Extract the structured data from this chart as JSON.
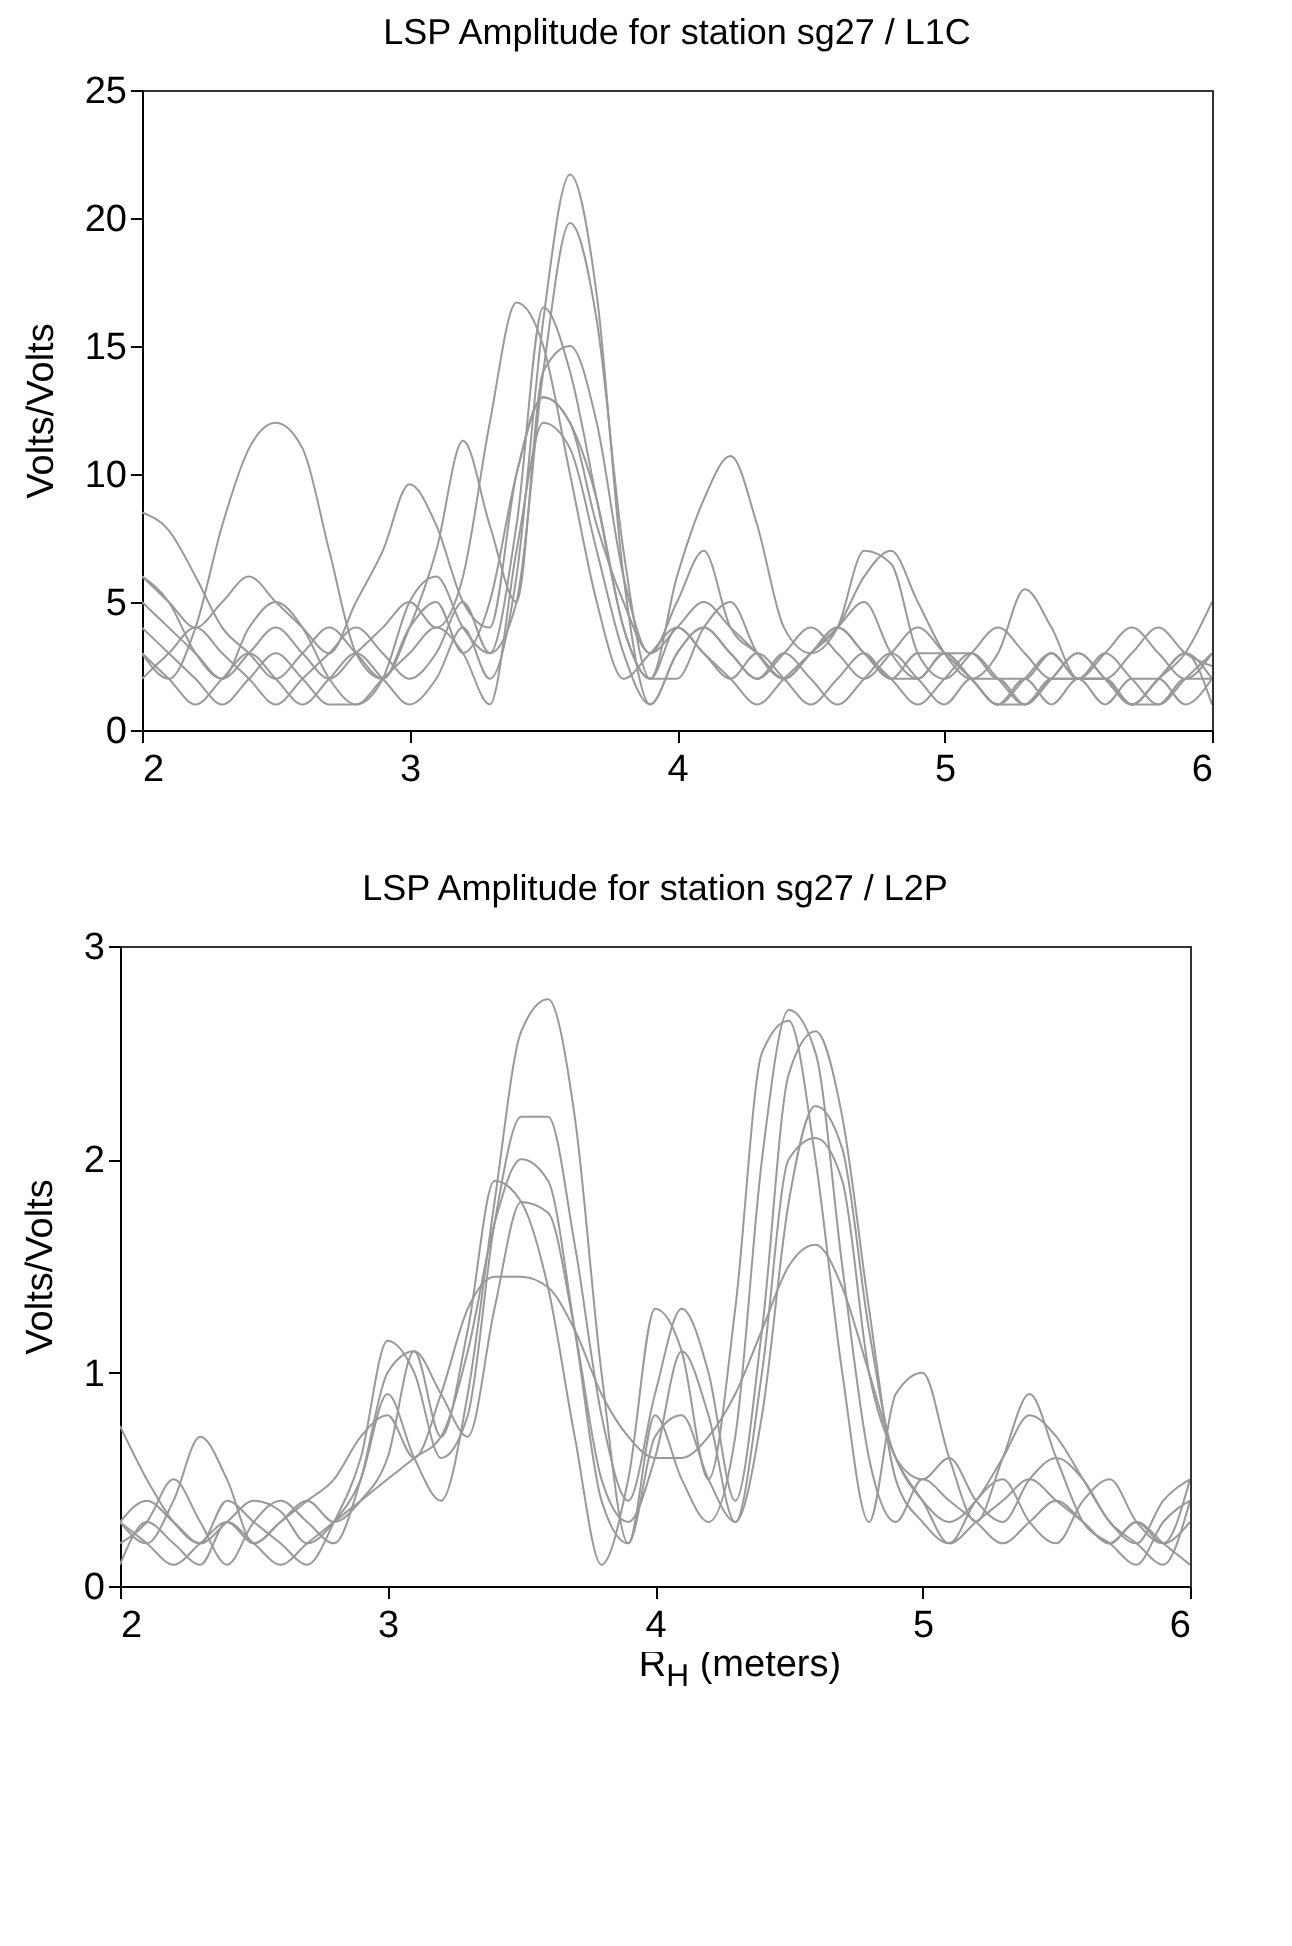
{
  "chart_data": [
    {
      "type": "line",
      "title": "LSP Amplitude for station sg27 / L1C",
      "ylabel": "Volts/Volts",
      "xlim": [
        2,
        6
      ],
      "xticks": [
        2,
        3,
        4,
        5,
        6
      ],
      "ylim": [
        0,
        25
      ],
      "yticks": [
        0,
        5,
        10,
        15,
        20,
        25
      ],
      "grid": false,
      "legend": false,
      "marker": "none",
      "line_style": "solid",
      "x": [
        2,
        2.1,
        2.2,
        2.3,
        2.4,
        2.5,
        2.6,
        2.7,
        2.8,
        2.9,
        3,
        3.1,
        3.2,
        3.3,
        3.4,
        3.5,
        3.6,
        3.7,
        3.8,
        3.9,
        4,
        4.1,
        4.2,
        4.3,
        4.4,
        4.5,
        4.6,
        4.7,
        4.8,
        4.9,
        5,
        5.1,
        5.2,
        5.3,
        5.4,
        5.5,
        5.6,
        5.7,
        5.8,
        5.9,
        6
      ],
      "series": [
        {
          "color": "#999999",
          "values": [
            3,
            2,
            1,
            2,
            3,
            2,
            1,
            2,
            3,
            2,
            1,
            2,
            4,
            2,
            6,
            16,
            21.7,
            17,
            6,
            1,
            3,
            4,
            3,
            2,
            3,
            2,
            1,
            2,
            3,
            2,
            1,
            2,
            2,
            1,
            2,
            2,
            1,
            2,
            2,
            1,
            2
          ]
        },
        {
          "color": "#999999",
          "values": [
            3,
            2,
            4,
            8,
            11,
            12,
            11,
            7,
            3,
            2,
            4,
            5,
            3,
            5,
            10,
            13,
            12,
            9,
            4,
            2,
            4,
            3,
            2,
            3,
            2,
            1,
            2,
            3,
            2,
            2,
            3,
            2,
            1,
            2,
            3,
            2,
            2,
            1,
            2,
            3,
            2
          ]
        },
        {
          "color": "#999999",
          "values": [
            8.5,
            7.8,
            6,
            4,
            3,
            2,
            3,
            4,
            3,
            2,
            4,
            7,
            11.3,
            8,
            5,
            14,
            15,
            12,
            6,
            3,
            5,
            7,
            4,
            3,
            2,
            3,
            4,
            3,
            2,
            1,
            2,
            3,
            2,
            1,
            2,
            3,
            2,
            1,
            2,
            3,
            5
          ]
        },
        {
          "color": "#999999",
          "values": [
            5,
            4,
            3,
            2,
            4,
            5,
            4,
            2,
            1,
            2,
            5,
            6,
            4,
            3,
            8,
            16.5,
            14,
            9,
            4,
            2,
            6,
            9,
            10.7,
            8,
            4,
            3,
            4,
            7,
            6.5,
            3,
            2,
            3,
            4,
            3,
            2,
            2,
            3,
            2,
            1,
            2,
            3
          ]
        },
        {
          "color": "#999999",
          "values": [
            6,
            5,
            4,
            5,
            6,
            5,
            4,
            3,
            5,
            7,
            9.6,
            8,
            5,
            4,
            10,
            13,
            12,
            8,
            5,
            3,
            4,
            5,
            4,
            3,
            2,
            3,
            4,
            6,
            7,
            5,
            3,
            2,
            3,
            5.5,
            4,
            2,
            3,
            4,
            3,
            2,
            3
          ]
        },
        {
          "color": "#999999",
          "values": [
            2,
            3,
            4,
            3,
            2,
            1,
            2,
            3,
            4,
            3,
            2,
            3,
            5,
            3,
            5,
            14,
            19.8,
            16,
            7,
            2,
            2,
            4,
            5,
            3,
            2,
            3,
            4,
            5,
            3,
            2,
            3,
            3,
            2,
            2,
            3,
            2,
            2,
            3,
            4,
            3,
            2.5
          ]
        },
        {
          "color": "#999999",
          "values": [
            4,
            3,
            2,
            1,
            2,
            3,
            2,
            1,
            1,
            2,
            3,
            4,
            3,
            1,
            7,
            12,
            11,
            7,
            3,
            1,
            3,
            4,
            3,
            2,
            3,
            4,
            3,
            2,
            3,
            4,
            3,
            2,
            1,
            2,
            1,
            2,
            2,
            1,
            2,
            3,
            1
          ]
        },
        {
          "color": "#999999",
          "values": [
            6,
            5,
            3,
            2,
            3,
            4,
            3,
            2,
            3,
            4,
            5,
            4,
            6,
            12,
            16.7,
            15,
            10,
            5,
            2,
            3,
            4,
            3,
            2,
            1,
            2,
            3,
            4,
            3,
            2,
            3,
            3,
            2,
            1,
            1,
            2,
            3,
            2,
            1,
            1,
            2,
            2
          ]
        }
      ]
    },
    {
      "type": "line",
      "title": "LSP Amplitude for station sg27 / L2P",
      "xlabel": "R$_{H}$ (meters)",
      "ylabel": "Volts/Volts",
      "xlim": [
        2,
        6
      ],
      "xticks": [
        2,
        3,
        4,
        5,
        6
      ],
      "ylim": [
        0,
        3
      ],
      "yticks": [
        0,
        1,
        2,
        3
      ],
      "grid": false,
      "legend": false,
      "marker": "none",
      "line_style": "solid",
      "x": [
        2,
        2.1,
        2.2,
        2.3,
        2.4,
        2.5,
        2.6,
        2.7,
        2.8,
        2.9,
        3,
        3.1,
        3.2,
        3.3,
        3.4,
        3.5,
        3.6,
        3.7,
        3.8,
        3.9,
        4,
        4.1,
        4.2,
        4.3,
        4.4,
        4.5,
        4.6,
        4.7,
        4.8,
        4.9,
        5,
        5.1,
        5.2,
        5.3,
        5.4,
        5.5,
        5.6,
        5.7,
        5.8,
        5.9,
        6
      ],
      "series": [
        {
          "color": "#999999",
          "values": [
            0.3,
            0.4,
            0.3,
            0.2,
            0.3,
            0.4,
            0.35,
            0.2,
            0.3,
            0.5,
            0.9,
            0.6,
            0.4,
            0.9,
            1.8,
            2.6,
            2.75,
            2.2,
            1.0,
            0.2,
            0.8,
            0.5,
            0.3,
            0.7,
            2.0,
            2.7,
            2.5,
            1.5,
            0.6,
            0.3,
            0.5,
            0.4,
            0.3,
            0.2,
            0.3,
            0.4,
            0.3,
            0.2,
            0.3,
            0.2,
            0.3
          ]
        },
        {
          "color": "#999999",
          "values": [
            0.75,
            0.5,
            0.3,
            0.2,
            0.4,
            0.3,
            0.2,
            0.1,
            0.3,
            0.6,
            1.15,
            1.0,
            0.6,
            0.8,
            1.7,
            2.2,
            2.2,
            1.6,
            0.8,
            0.4,
            0.9,
            1.3,
            1.0,
            0.4,
            1.2,
            2.4,
            2.6,
            2.2,
            1.3,
            0.5,
            0.3,
            0.2,
            0.4,
            0.5,
            0.3,
            0.2,
            0.4,
            0.5,
            0.3,
            0.2,
            0.5
          ]
        },
        {
          "color": "#999999",
          "values": [
            0.3,
            0.2,
            0.4,
            0.7,
            0.5,
            0.2,
            0.3,
            0.4,
            0.5,
            0.7,
            0.8,
            0.6,
            0.9,
            1.3,
            1.45,
            1.45,
            1.4,
            1.2,
            0.9,
            0.7,
            0.6,
            0.6,
            0.7,
            0.9,
            1.2,
            1.5,
            1.6,
            1.4,
            1.0,
            0.6,
            0.4,
            0.3,
            0.4,
            0.6,
            0.8,
            0.7,
            0.5,
            0.3,
            0.2,
            0.4,
            0.5
          ]
        },
        {
          "color": "#999999",
          "values": [
            0.2,
            0.3,
            0.5,
            0.3,
            0.1,
            0.3,
            0.4,
            0.3,
            0.2,
            0.5,
            1.0,
            1.1,
            0.7,
            1.2,
            1.9,
            1.8,
            1.4,
            0.7,
            0.1,
            0.5,
            1.3,
            1.1,
            0.5,
            1.3,
            2.5,
            2.65,
            2.0,
            1.0,
            0.3,
            0.9,
            1.0,
            0.6,
            0.3,
            0.6,
            0.9,
            0.6,
            0.3,
            0.2,
            0.1,
            0.3,
            0.4
          ]
        },
        {
          "color": "#999999",
          "values": [
            0.1,
            0.3,
            0.2,
            0.1,
            0.3,
            0.2,
            0.3,
            0.4,
            0.3,
            0.4,
            0.6,
            1.1,
            0.9,
            0.7,
            1.3,
            1.8,
            1.75,
            1.2,
            0.5,
            0.3,
            0.6,
            1.1,
            0.8,
            0.3,
            0.8,
            1.8,
            2.25,
            2.05,
            1.2,
            0.6,
            0.5,
            0.6,
            0.4,
            0.3,
            0.5,
            0.6,
            0.5,
            0.3,
            0.2,
            0.1,
            0.4
          ]
        },
        {
          "color": "#999999",
          "values": [
            0.3,
            0.2,
            0.1,
            0.2,
            0.3,
            0.2,
            0.1,
            0.2,
            0.3,
            0.4,
            0.5,
            0.6,
            0.7,
            1.1,
            1.7,
            2.0,
            1.9,
            1.2,
            0.4,
            0.2,
            0.7,
            0.8,
            0.5,
            0.3,
            1.0,
            2.0,
            2.1,
            1.9,
            1.0,
            0.6,
            0.4,
            0.2,
            0.3,
            0.4,
            0.5,
            0.4,
            0.3,
            0.2,
            0.3,
            0.2,
            0.1
          ]
        }
      ]
    }
  ]
}
